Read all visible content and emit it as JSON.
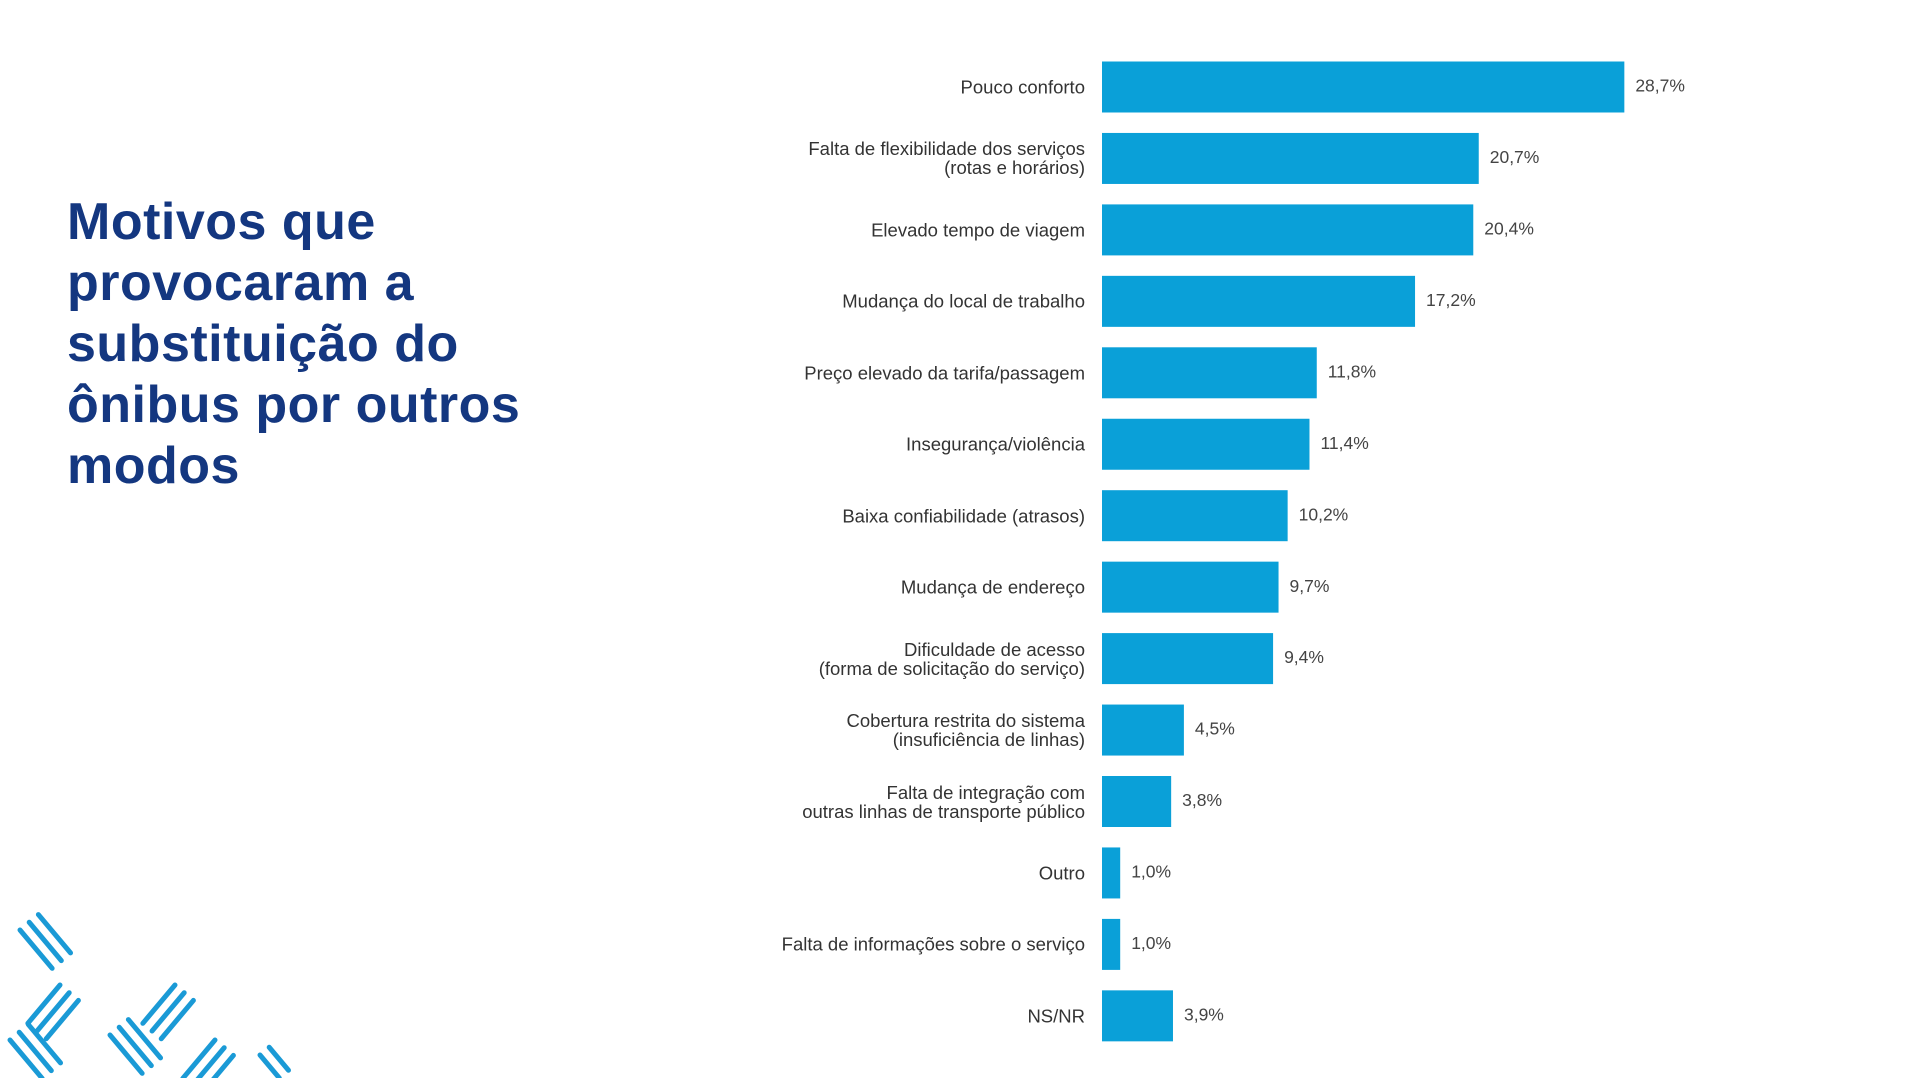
{
  "chart_data": {
    "type": "bar",
    "orientation": "horizontal",
    "title": "Motivos que\nprovocaram a\nsubstituição do\nônibus por outros\nmodos",
    "categories": [
      "Pouco conforto",
      "Falta de flexibilidade dos serviços\n(rotas e horários)",
      "Elevado tempo de viagem",
      "Mudança do local de trabalho",
      "Preço elevado da tarifa/passagem",
      "Insegurança/violência",
      "Baixa confiabilidade (atrasos)",
      "Mudança de endereço",
      "Dificuldade de acesso\n(forma de solicitação do serviço)",
      "Cobertura restrita do sistema\n(insuficiência de linhas)",
      "Falta de integração com\noutras linhas de transporte público",
      "Outro",
      "Falta de informações sobre o serviço",
      "NS/NR"
    ],
    "values": [
      28.7,
      20.7,
      20.4,
      17.2,
      11.8,
      11.4,
      10.2,
      9.7,
      9.4,
      4.5,
      3.8,
      1.0,
      1.0,
      3.9
    ],
    "value_labels": [
      "28,7%",
      "20,7%",
      "20,4%",
      "17,2%",
      "11,8%",
      "11,4%",
      "10,2%",
      "9,7%",
      "9,4%",
      "4,5%",
      "3,8%",
      "1,0%",
      "1,0%",
      "3,9%"
    ],
    "color": "#0aa0d8"
  }
}
